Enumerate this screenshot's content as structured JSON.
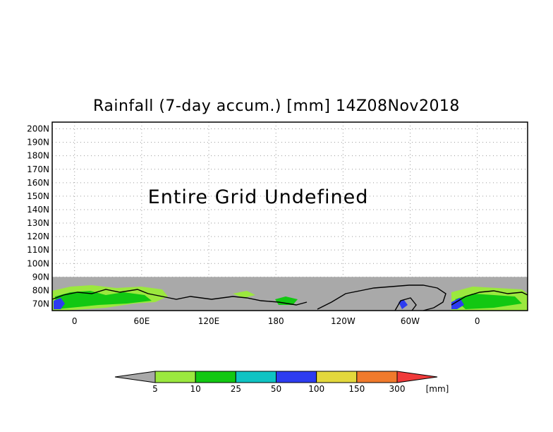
{
  "title": "Rainfall (7-day accum.) [mm] 14Z08Nov2018",
  "undefined_message": "Entire Grid Undefined",
  "colorbar_unit": "[mm]",
  "colors": {
    "frame": "#000000",
    "grid": "#9a9a9a",
    "undefined_fill": "#a9a9a9",
    "background": "#ffffff"
  },
  "chart_data": {
    "type": "heatmap",
    "title": "Rainfall (7-day accum.) [mm] 14Z08Nov2018",
    "x_tick_labels": [
      "0",
      "60E",
      "120E",
      "180",
      "120W",
      "60W",
      "0"
    ],
    "x_ticks_deg": [
      0,
      60,
      120,
      180,
      240,
      300,
      360
    ],
    "x_range_deg": [
      -20,
      405
    ],
    "y_tick_labels": [
      "200N",
      "190N",
      "180N",
      "170N",
      "160N",
      "150N",
      "140N",
      "130N",
      "120N",
      "110N",
      "100N",
      "90N",
      "80N",
      "70N"
    ],
    "y_ticks_deg": [
      200,
      190,
      180,
      170,
      160,
      150,
      140,
      130,
      120,
      110,
      100,
      90,
      80,
      70
    ],
    "y_range_deg": [
      65,
      205
    ],
    "data_region_lat": [
      65,
      90
    ],
    "grid": true,
    "colorbar": {
      "levels": [
        "5",
        "10",
        "25",
        "50",
        "100",
        "150",
        "300"
      ],
      "colors": [
        "#a9a9a9",
        "#9be83e",
        "#12c812",
        "#0fc3c3",
        "#2d3cf0",
        "#e3d83c",
        "#f07a2c",
        "#f03a3a"
      ]
    }
  }
}
